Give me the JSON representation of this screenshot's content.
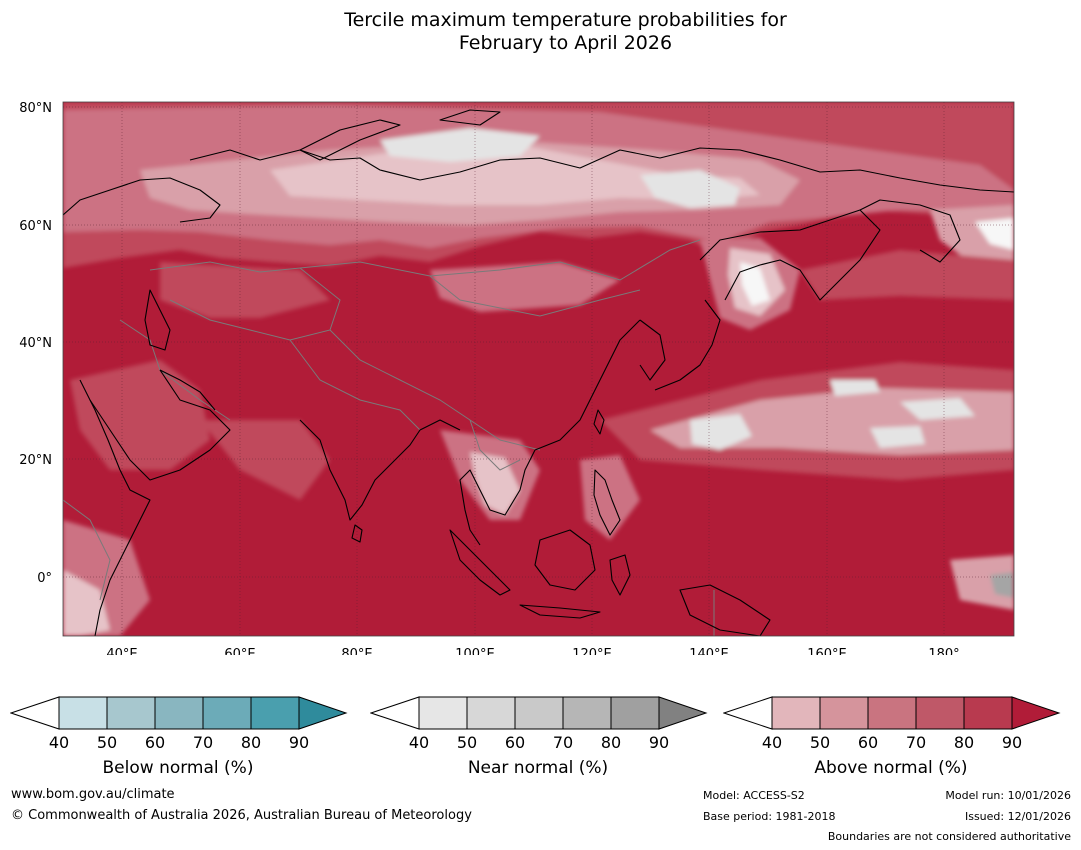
{
  "title": {
    "line1": "Tercile maximum temperature probabilities for",
    "line2": "February to April 2026"
  },
  "map": {
    "lat_labels": [
      "80°N",
      "60°N",
      "40°N",
      "20°N",
      "0°"
    ],
    "lon_labels": [
      "40°E",
      "60°E",
      "80°E",
      "100°E",
      "120°E",
      "140°E",
      "160°E",
      "180°"
    ],
    "extent": {
      "lon_min": 30,
      "lon_max": 191,
      "lat_min": -10,
      "lat_max": 81
    },
    "colors": {
      "base": "#b11c38",
      "level70": "#c04a5c",
      "level60": "#cc7283",
      "level50": "#d9a0a9",
      "level40": "#e6c3c8",
      "near": "#e4e4e4",
      "white": "#f7f7f7",
      "grey": "#a5a5a5",
      "coast": "#000000",
      "border": "#7a7a7a"
    }
  },
  "legends": [
    {
      "id": "below",
      "title": "Below normal (%)",
      "ticks": [
        "40",
        "50",
        "60",
        "70",
        "80",
        "90"
      ],
      "colors": [
        "#ffffff",
        "#c8e0e6",
        "#a7c7ce",
        "#89b6c0",
        "#6cabb8",
        "#4a9fae",
        "#2f8b9c"
      ]
    },
    {
      "id": "near",
      "title": "Near normal (%)",
      "ticks": [
        "40",
        "50",
        "60",
        "70",
        "80",
        "90"
      ],
      "colors": [
        "#ffffff",
        "#e6e6e6",
        "#d7d7d7",
        "#c9c9c9",
        "#b6b6b6",
        "#a0a0a0",
        "#818181"
      ]
    },
    {
      "id": "above",
      "title": "Above normal (%)",
      "ticks": [
        "40",
        "50",
        "60",
        "70",
        "80",
        "90"
      ],
      "colors": [
        "#ffffff",
        "#e2b6bb",
        "#d5949c",
        "#c97480",
        "#bf5868",
        "#b83a4f",
        "#b11c38"
      ]
    }
  ],
  "footer": {
    "website": "www.bom.gov.au/climate",
    "copyright": "© Commonwealth of Australia 2026, Australian Bureau of Meteorology",
    "model": "Model: ACCESS-S2",
    "base_period": "Base period: 1981-2018",
    "model_run": "Model run: 10/01/2026",
    "issued": "Issued: 12/01/2026",
    "boundaries": "Boundaries are not considered authoritative"
  }
}
